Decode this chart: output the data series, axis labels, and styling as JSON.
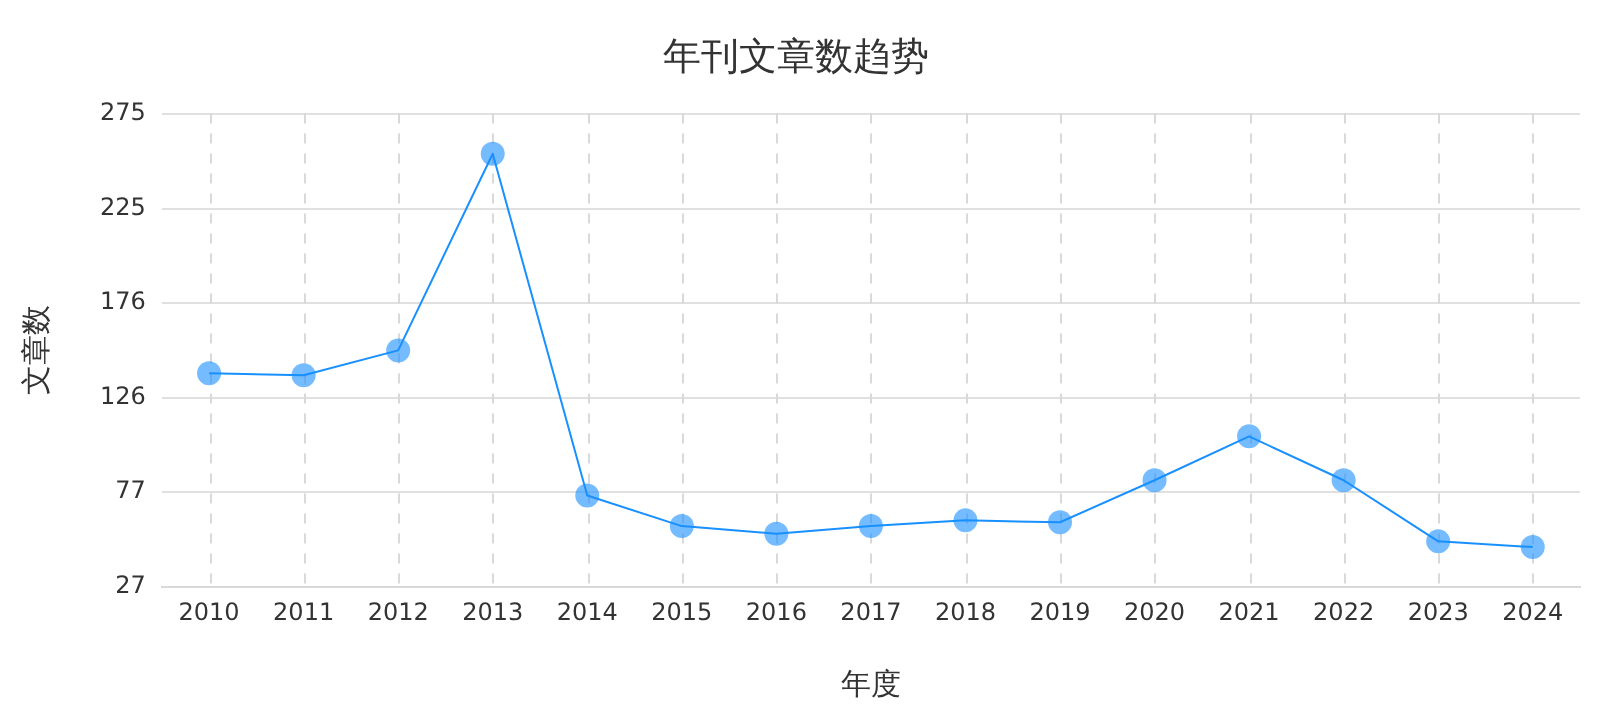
{
  "chart_data": {
    "type": "line",
    "title": "年刊文章数趋势",
    "xlabel": "年度",
    "ylabel": "文章数",
    "categories": [
      "2010",
      "2011",
      "2012",
      "2013",
      "2014",
      "2015",
      "2016",
      "2017",
      "2018",
      "2019",
      "2020",
      "2021",
      "2022",
      "2023",
      "2024"
    ],
    "series": [
      {
        "color": "#1890ff",
        "values": [
          139,
          138,
          151,
          254,
          75,
          59,
          55,
          59,
          62,
          61,
          83,
          106,
          83,
          51,
          48
        ]
      }
    ],
    "ylim": [
      27,
      275
    ],
    "yticks": [
      27,
      77,
      126,
      176,
      225,
      275
    ],
    "grid": true,
    "legend": false,
    "marker": "circle",
    "line_style": "solid"
  }
}
